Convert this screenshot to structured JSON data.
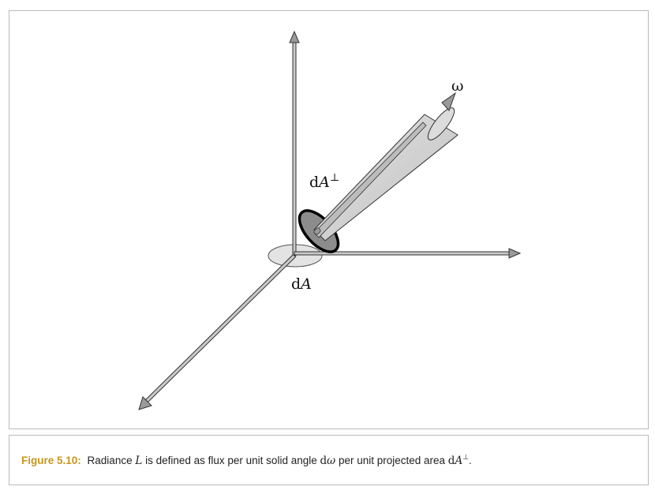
{
  "diagram": {
    "labels": {
      "omega": "ω",
      "dA_perp_d": "d",
      "dA_perp_A": "A",
      "dA_perp_sup": "⊥",
      "dA_d": "d",
      "dA_A": "A"
    },
    "colors": {
      "axis_fill": "#c8c8c8",
      "axis_stroke": "#333333",
      "cone_fill": "#d4d4d4",
      "projected_disk_fill": "#8c8c8c",
      "surface_ellipse_fill": "#e3e3e3",
      "caption_accent": "#c8961e"
    }
  },
  "caption": {
    "label": "Figure 5.10:",
    "text_1": "Radiance",
    "symbol_L": "L",
    "text_2": "is defined as flux per unit solid angle",
    "symbol_d": "d",
    "symbol_omega": "ω",
    "text_3": "per unit projected area",
    "symbol_d2": "d",
    "symbol_A": "A",
    "symbol_perp": "⊥",
    "text_end": "."
  }
}
